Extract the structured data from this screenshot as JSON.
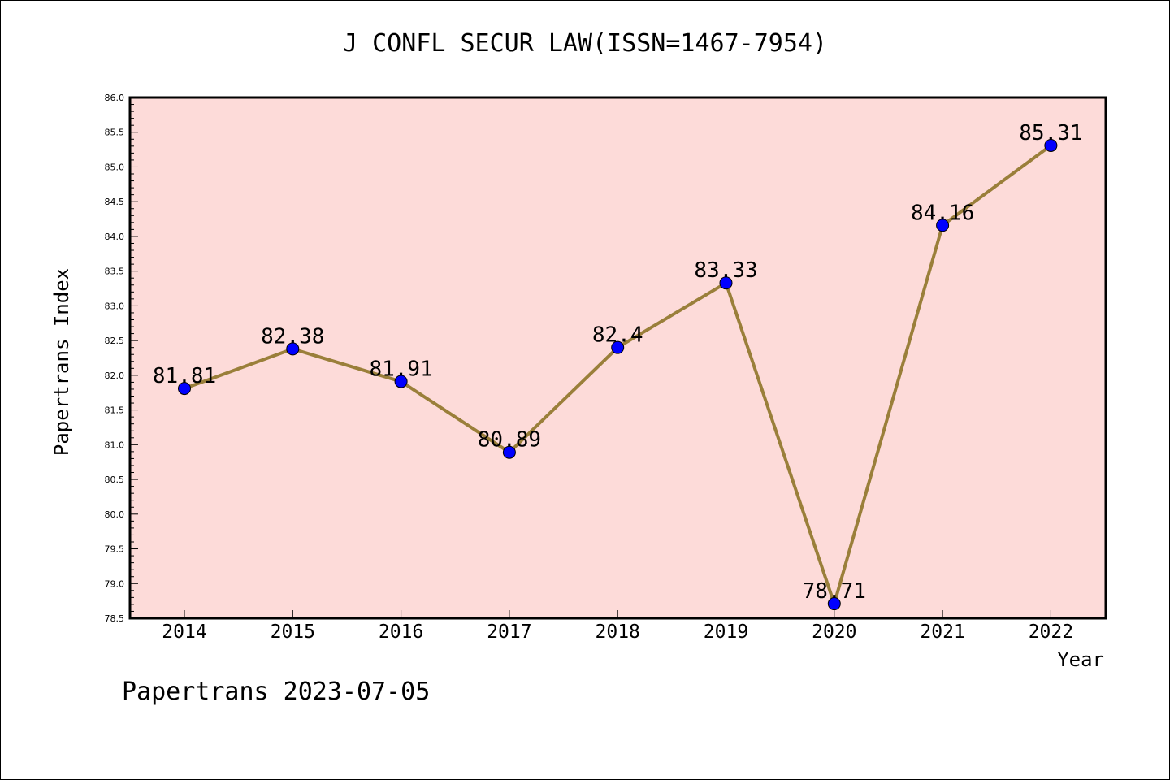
{
  "chart_data": {
    "type": "line",
    "title": "J CONFL SECUR LAW(ISSN=1467-7954)",
    "xlabel": "Year",
    "ylabel": "Papertrans Index",
    "categories": [
      "2014",
      "2015",
      "2016",
      "2017",
      "2018",
      "2019",
      "2020",
      "2021",
      "2022"
    ],
    "series": [
      {
        "values": [
          81.81,
          82.38,
          81.91,
          80.89,
          82.4,
          83.33,
          78.71,
          84.16,
          85.31
        ],
        "data_labels": [
          "81.81",
          "82.38",
          "81.91",
          "80.89",
          "82.4",
          "83.33",
          "78.71",
          "84.16",
          "85.31"
        ]
      }
    ],
    "ylim": [
      78.5,
      86.0
    ],
    "yticks": [
      "78.5",
      "79.0",
      "79.5",
      "80.0",
      "80.5",
      "81.0",
      "81.5",
      "82.0",
      "82.5",
      "83.0",
      "83.5",
      "84.0",
      "84.5",
      "85.0",
      "85.5",
      "86.0"
    ],
    "grid": false,
    "colors": {
      "plot_background": "#fddbd9",
      "line": "#9a7f3a",
      "marker": "#0000ff"
    }
  },
  "footer": "Papertrans 2023-07-05"
}
